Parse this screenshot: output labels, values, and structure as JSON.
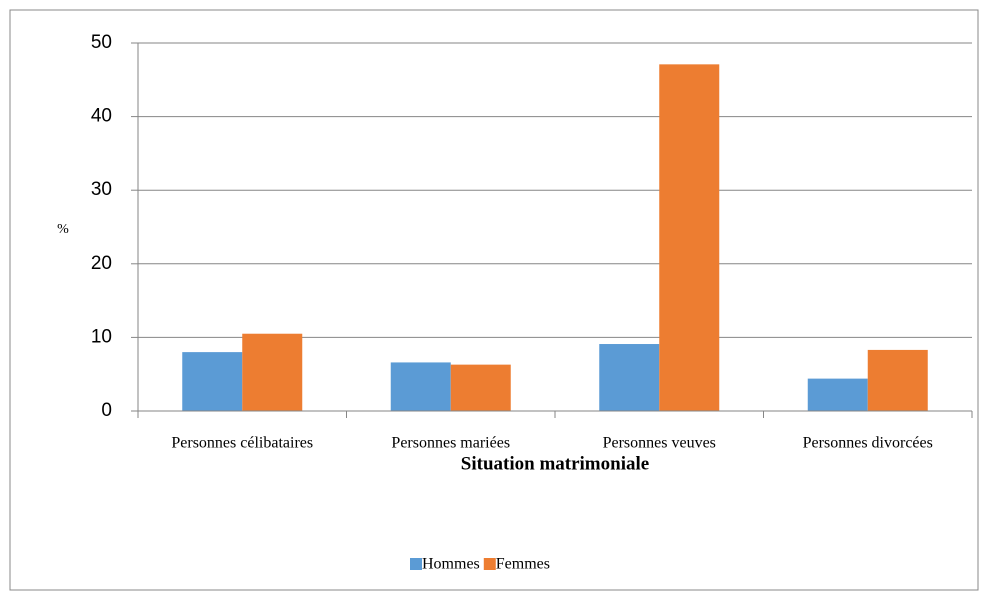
{
  "chart_data": {
    "type": "bar",
    "y_axis_label": "%",
    "x_axis_label": "Situation matrimoniale",
    "categories": [
      "Personnes célibataires",
      "Personnes mariées",
      "Personnes veuves",
      "Personnes divorcées"
    ],
    "series": [
      {
        "name": "Hommes",
        "color": "#5b9bd5",
        "values": [
          8.0,
          6.6,
          9.1,
          4.4
        ]
      },
      {
        "name": "Femmes",
        "color": "#ed7d31",
        "values": [
          10.5,
          6.3,
          47.1,
          8.3
        ]
      }
    ],
    "ylim": [
      0,
      50
    ],
    "yticks": [
      0,
      10,
      20,
      30,
      40,
      50
    ],
    "grid": true,
    "legend": "bottom"
  }
}
